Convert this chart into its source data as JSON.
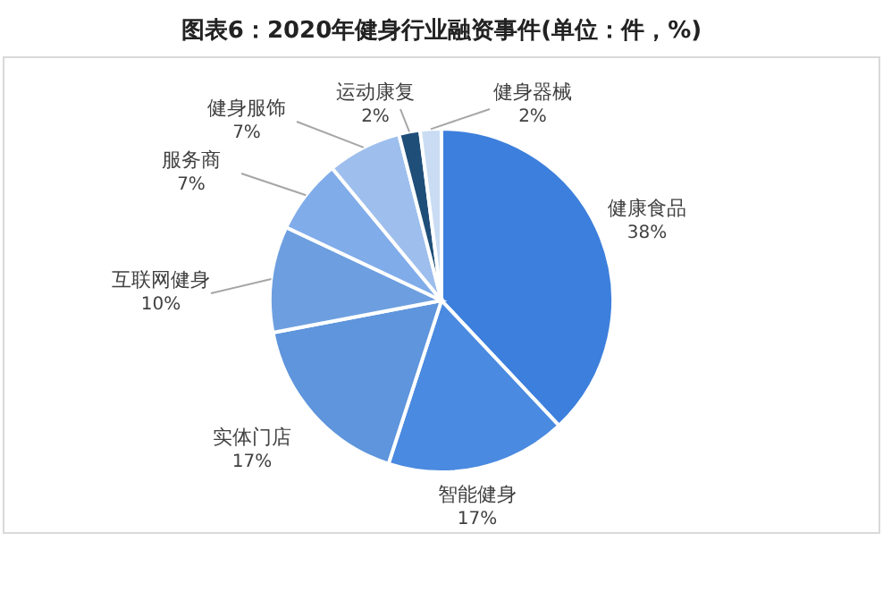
{
  "chart_data": {
    "type": "pie",
    "title": "图表6：2020年健身行业融资事件(单位：件，%)",
    "categories": [
      "健康食品",
      "智能健身",
      "实体门店",
      "互联网健身",
      "服务商",
      "健身服饰",
      "运动康复",
      "健身器械"
    ],
    "values": [
      38,
      17,
      17,
      10,
      7,
      7,
      2,
      2
    ],
    "colors": [
      "#3d7fdc",
      "#4a8ae0",
      "#5e95dc",
      "#6d9fe0",
      "#80acea",
      "#9ebfed",
      "#1f4e79",
      "#c9dcf3"
    ],
    "value_labels": [
      "38%",
      "17%",
      "17%",
      "10%",
      "7%",
      "7%",
      "2%",
      "2%"
    ]
  }
}
